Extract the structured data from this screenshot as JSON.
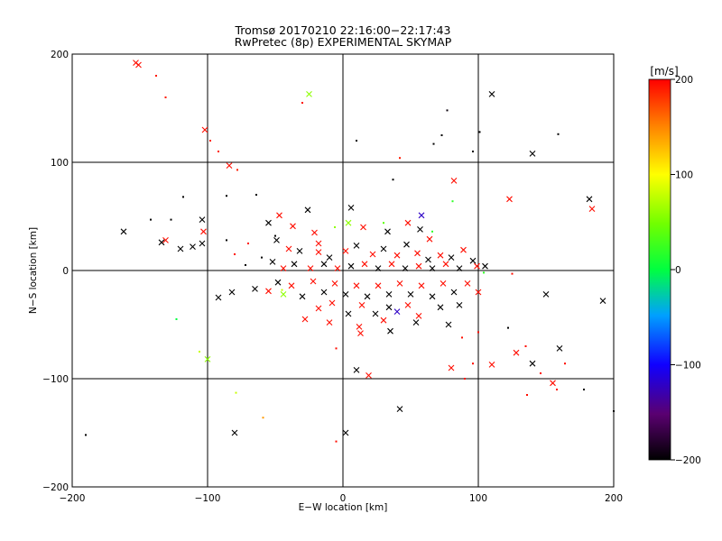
{
  "chart_data": {
    "type": "scatter",
    "title": "Tromsø 20170210 22:16:00−22:17:43",
    "subtitle": "RwPretec (8p) EXPERIMENTAL SKYMAP",
    "xlabel": "E−W location [km]",
    "ylabel": "N−S location [km]",
    "xlim": [
      -200,
      200
    ],
    "ylim": [
      -200,
      200
    ],
    "xticks": [
      -200,
      -100,
      0,
      100,
      200
    ],
    "yticks": [
      -200,
      -100,
      0,
      100,
      200
    ],
    "xtick_labels": [
      "−200",
      "−100",
      "0",
      "100",
      "200"
    ],
    "ytick_labels": [
      "−200",
      "−100",
      "0",
      "100",
      "200"
    ],
    "grid": true,
    "grid_lines_x": [
      -100,
      0,
      100
    ],
    "grid_lines_y": [
      -100,
      0,
      100
    ],
    "colorbar": {
      "label": "[m/s]",
      "range": [
        -200,
        200
      ],
      "ticks": [
        200,
        100,
        0,
        -100,
        -200
      ],
      "tick_labels": [
        "200",
        "100",
        "0",
        "−100",
        "−200"
      ],
      "colormap": "black-purple-blue-cyan-green-yellow-orange-red"
    },
    "marker_types": [
      "x",
      "dot"
    ],
    "points": [
      {
        "x": -151,
        "y": 190,
        "v": 195,
        "m": "x"
      },
      {
        "x": -153,
        "y": 192,
        "v": 195,
        "m": "x"
      },
      {
        "x": -138,
        "y": 180,
        "v": 190,
        "m": "dot"
      },
      {
        "x": -131,
        "y": 160,
        "v": 190,
        "m": "dot"
      },
      {
        "x": -25,
        "y": 163,
        "v": 60,
        "m": "x"
      },
      {
        "x": -30,
        "y": 155,
        "v": 195,
        "m": "dot"
      },
      {
        "x": 110,
        "y": 163,
        "v": -200,
        "m": "x"
      },
      {
        "x": 77,
        "y": 148,
        "v": -195,
        "m": "dot"
      },
      {
        "x": -102,
        "y": 130,
        "v": 195,
        "m": "x"
      },
      {
        "x": -98,
        "y": 120,
        "v": 190,
        "m": "dot"
      },
      {
        "x": -92,
        "y": 110,
        "v": 190,
        "m": "dot"
      },
      {
        "x": 10,
        "y": 120,
        "v": -200,
        "m": "dot"
      },
      {
        "x": 73,
        "y": 125,
        "v": -200,
        "m": "dot"
      },
      {
        "x": 67,
        "y": 117,
        "v": -200,
        "m": "dot"
      },
      {
        "x": 101,
        "y": 128,
        "v": -200,
        "m": "dot"
      },
      {
        "x": 96,
        "y": 110,
        "v": -200,
        "m": "dot"
      },
      {
        "x": 140,
        "y": 108,
        "v": -200,
        "m": "x"
      },
      {
        "x": 159,
        "y": 126,
        "v": -200,
        "m": "dot"
      },
      {
        "x": -84,
        "y": 97,
        "v": 195,
        "m": "x"
      },
      {
        "x": -78,
        "y": 93,
        "v": 190,
        "m": "dot"
      },
      {
        "x": 82,
        "y": 83,
        "v": 195,
        "m": "x"
      },
      {
        "x": 37,
        "y": 84,
        "v": -200,
        "m": "dot"
      },
      {
        "x": 42,
        "y": 104,
        "v": 190,
        "m": "dot"
      },
      {
        "x": -118,
        "y": 68,
        "v": -200,
        "m": "dot"
      },
      {
        "x": -86,
        "y": 69,
        "v": -200,
        "m": "dot"
      },
      {
        "x": -64,
        "y": 70,
        "v": -200,
        "m": "dot"
      },
      {
        "x": 182,
        "y": 66,
        "v": -200,
        "m": "x"
      },
      {
        "x": 184,
        "y": 57,
        "v": 195,
        "m": "x"
      },
      {
        "x": 123,
        "y": 66,
        "v": 195,
        "m": "x"
      },
      {
        "x": 81,
        "y": 64,
        "v": 20,
        "m": "dot"
      },
      {
        "x": -162,
        "y": 36,
        "v": -200,
        "m": "x"
      },
      {
        "x": -142,
        "y": 47,
        "v": -200,
        "m": "dot"
      },
      {
        "x": -127,
        "y": 47,
        "v": -200,
        "m": "dot"
      },
      {
        "x": -104,
        "y": 47,
        "v": -200,
        "m": "x"
      },
      {
        "x": -131,
        "y": 28,
        "v": 195,
        "m": "x"
      },
      {
        "x": -134,
        "y": 26,
        "v": -200,
        "m": "x"
      },
      {
        "x": -120,
        "y": 20,
        "v": -200,
        "m": "x"
      },
      {
        "x": -111,
        "y": 22,
        "v": -200,
        "m": "x"
      },
      {
        "x": -104,
        "y": 25,
        "v": -200,
        "m": "x"
      },
      {
        "x": -103,
        "y": 36,
        "v": 195,
        "m": "x"
      },
      {
        "x": -86,
        "y": 28,
        "v": -200,
        "m": "dot"
      },
      {
        "x": -26,
        "y": 56,
        "v": -200,
        "m": "x"
      },
      {
        "x": 6,
        "y": 58,
        "v": -200,
        "m": "x"
      },
      {
        "x": 4,
        "y": 44,
        "v": 60,
        "m": "x"
      },
      {
        "x": 58,
        "y": 51,
        "v": -120,
        "m": "x"
      },
      {
        "x": -55,
        "y": 44,
        "v": -200,
        "m": "x"
      },
      {
        "x": -47,
        "y": 51,
        "v": 195,
        "m": "x"
      },
      {
        "x": -37,
        "y": 41,
        "v": 195,
        "m": "x"
      },
      {
        "x": -21,
        "y": 35,
        "v": 195,
        "m": "x"
      },
      {
        "x": -18,
        "y": 25,
        "v": 195,
        "m": "x"
      },
      {
        "x": 15,
        "y": 40,
        "v": 195,
        "m": "x"
      },
      {
        "x": 33,
        "y": 36,
        "v": -200,
        "m": "x"
      },
      {
        "x": 48,
        "y": 44,
        "v": 195,
        "m": "x"
      },
      {
        "x": 57,
        "y": 38,
        "v": -200,
        "m": "x"
      },
      {
        "x": 64,
        "y": 29,
        "v": 195,
        "m": "x"
      },
      {
        "x": -49,
        "y": 28,
        "v": -200,
        "m": "x"
      },
      {
        "x": -40,
        "y": 20,
        "v": 195,
        "m": "x"
      },
      {
        "x": -32,
        "y": 18,
        "v": -200,
        "m": "x"
      },
      {
        "x": -18,
        "y": 17,
        "v": 195,
        "m": "x"
      },
      {
        "x": -10,
        "y": 12,
        "v": -200,
        "m": "x"
      },
      {
        "x": 2,
        "y": 18,
        "v": 195,
        "m": "x"
      },
      {
        "x": 10,
        "y": 23,
        "v": -200,
        "m": "x"
      },
      {
        "x": 22,
        "y": 15,
        "v": 195,
        "m": "x"
      },
      {
        "x": 30,
        "y": 20,
        "v": -200,
        "m": "x"
      },
      {
        "x": 40,
        "y": 14,
        "v": 195,
        "m": "x"
      },
      {
        "x": 47,
        "y": 24,
        "v": -200,
        "m": "x"
      },
      {
        "x": 55,
        "y": 16,
        "v": 195,
        "m": "x"
      },
      {
        "x": 63,
        "y": 10,
        "v": -200,
        "m": "x"
      },
      {
        "x": 72,
        "y": 14,
        "v": 195,
        "m": "x"
      },
      {
        "x": 80,
        "y": 12,
        "v": -200,
        "m": "x"
      },
      {
        "x": 89,
        "y": 19,
        "v": 195,
        "m": "x"
      },
      {
        "x": 96,
        "y": 9,
        "v": -200,
        "m": "x"
      },
      {
        "x": 99,
        "y": 4,
        "v": 195,
        "m": "x"
      },
      {
        "x": 105,
        "y": 4,
        "v": -200,
        "m": "x"
      },
      {
        "x": -52,
        "y": 8,
        "v": -200,
        "m": "x"
      },
      {
        "x": -44,
        "y": 2,
        "v": 195,
        "m": "x"
      },
      {
        "x": -36,
        "y": 6,
        "v": -200,
        "m": "x"
      },
      {
        "x": -24,
        "y": 2,
        "v": 195,
        "m": "x"
      },
      {
        "x": -14,
        "y": 6,
        "v": -200,
        "m": "x"
      },
      {
        "x": -4,
        "y": 2,
        "v": 195,
        "m": "x"
      },
      {
        "x": 6,
        "y": 4,
        "v": -200,
        "m": "x"
      },
      {
        "x": 16,
        "y": 6,
        "v": 195,
        "m": "x"
      },
      {
        "x": 26,
        "y": 2,
        "v": -200,
        "m": "x"
      },
      {
        "x": 36,
        "y": 6,
        "v": 195,
        "m": "x"
      },
      {
        "x": 46,
        "y": 2,
        "v": -200,
        "m": "x"
      },
      {
        "x": 56,
        "y": 4,
        "v": 195,
        "m": "x"
      },
      {
        "x": 66,
        "y": 2,
        "v": -200,
        "m": "x"
      },
      {
        "x": 76,
        "y": 6,
        "v": 195,
        "m": "x"
      },
      {
        "x": 86,
        "y": 2,
        "v": -200,
        "m": "x"
      },
      {
        "x": -92,
        "y": -25,
        "v": -200,
        "m": "x"
      },
      {
        "x": -82,
        "y": -20,
        "v": -200,
        "m": "x"
      },
      {
        "x": -65,
        "y": -17,
        "v": -200,
        "m": "x"
      },
      {
        "x": -55,
        "y": -19,
        "v": 195,
        "m": "x"
      },
      {
        "x": -48,
        "y": -11,
        "v": -200,
        "m": "x"
      },
      {
        "x": -44,
        "y": -22,
        "v": 60,
        "m": "x"
      },
      {
        "x": -38,
        "y": -14,
        "v": 195,
        "m": "x"
      },
      {
        "x": -30,
        "y": -24,
        "v": -200,
        "m": "x"
      },
      {
        "x": -22,
        "y": -10,
        "v": 195,
        "m": "x"
      },
      {
        "x": -14,
        "y": -20,
        "v": -200,
        "m": "x"
      },
      {
        "x": -6,
        "y": -12,
        "v": 195,
        "m": "x"
      },
      {
        "x": 2,
        "y": -22,
        "v": -200,
        "m": "x"
      },
      {
        "x": 10,
        "y": -14,
        "v": 195,
        "m": "x"
      },
      {
        "x": 18,
        "y": -24,
        "v": -200,
        "m": "x"
      },
      {
        "x": 26,
        "y": -14,
        "v": 195,
        "m": "x"
      },
      {
        "x": 34,
        "y": -22,
        "v": -200,
        "m": "x"
      },
      {
        "x": 42,
        "y": -12,
        "v": 195,
        "m": "x"
      },
      {
        "x": 50,
        "y": -22,
        "v": -200,
        "m": "x"
      },
      {
        "x": 58,
        "y": -14,
        "v": 195,
        "m": "x"
      },
      {
        "x": 66,
        "y": -24,
        "v": -200,
        "m": "x"
      },
      {
        "x": 74,
        "y": -12,
        "v": 195,
        "m": "x"
      },
      {
        "x": 82,
        "y": -20,
        "v": -200,
        "m": "x"
      },
      {
        "x": 92,
        "y": -12,
        "v": 195,
        "m": "x"
      },
      {
        "x": 100,
        "y": -20,
        "v": 195,
        "m": "x"
      },
      {
        "x": 150,
        "y": -22,
        "v": -200,
        "m": "x"
      },
      {
        "x": 192,
        "y": -28,
        "v": -200,
        "m": "x"
      },
      {
        "x": -18,
        "y": -35,
        "v": 195,
        "m": "x"
      },
      {
        "x": -8,
        "y": -30,
        "v": 195,
        "m": "x"
      },
      {
        "x": 4,
        "y": -40,
        "v": -200,
        "m": "x"
      },
      {
        "x": 14,
        "y": -32,
        "v": 195,
        "m": "x"
      },
      {
        "x": 24,
        "y": -40,
        "v": -200,
        "m": "x"
      },
      {
        "x": 34,
        "y": -34,
        "v": -200,
        "m": "x"
      },
      {
        "x": 40,
        "y": -38,
        "v": -120,
        "m": "x"
      },
      {
        "x": 48,
        "y": -32,
        "v": 195,
        "m": "x"
      },
      {
        "x": 56,
        "y": -42,
        "v": 195,
        "m": "x"
      },
      {
        "x": 72,
        "y": -34,
        "v": -200,
        "m": "x"
      },
      {
        "x": 86,
        "y": -32,
        "v": -200,
        "m": "x"
      },
      {
        "x": -28,
        "y": -45,
        "v": 195,
        "m": "x"
      },
      {
        "x": -10,
        "y": -48,
        "v": 195,
        "m": "x"
      },
      {
        "x": 12,
        "y": -52,
        "v": 195,
        "m": "x"
      },
      {
        "x": 30,
        "y": -46,
        "v": 195,
        "m": "x"
      },
      {
        "x": 54,
        "y": -48,
        "v": -200,
        "m": "x"
      },
      {
        "x": 78,
        "y": -50,
        "v": -200,
        "m": "x"
      },
      {
        "x": 13,
        "y": -58,
        "v": 195,
        "m": "x"
      },
      {
        "x": 35,
        "y": -56,
        "v": -200,
        "m": "x"
      },
      {
        "x": 80,
        "y": -90,
        "v": 195,
        "m": "x"
      },
      {
        "x": 110,
        "y": -87,
        "v": 195,
        "m": "x"
      },
      {
        "x": 128,
        "y": -76,
        "v": 195,
        "m": "x"
      },
      {
        "x": 140,
        "y": -86,
        "v": -200,
        "m": "x"
      },
      {
        "x": 160,
        "y": -72,
        "v": -200,
        "m": "x"
      },
      {
        "x": 155,
        "y": -104,
        "v": 195,
        "m": "x"
      },
      {
        "x": 10,
        "y": -92,
        "v": -200,
        "m": "x"
      },
      {
        "x": 19,
        "y": -97,
        "v": 195,
        "m": "x"
      },
      {
        "x": -100,
        "y": -82,
        "v": 60,
        "m": "x"
      },
      {
        "x": 42,
        "y": -128,
        "v": -200,
        "m": "x"
      },
      {
        "x": -80,
        "y": -150,
        "v": -200,
        "m": "x"
      },
      {
        "x": 2,
        "y": -150,
        "v": -200,
        "m": "x"
      },
      {
        "x": -190,
        "y": -152,
        "v": -200,
        "m": "dot"
      },
      {
        "x": -106,
        "y": -75,
        "v": 80,
        "m": "dot"
      },
      {
        "x": -123,
        "y": -45,
        "v": 0,
        "m": "dot"
      },
      {
        "x": -79,
        "y": -113,
        "v": 80,
        "m": "dot"
      },
      {
        "x": -59,
        "y": -136,
        "v": 140,
        "m": "dot"
      },
      {
        "x": -5,
        "y": -158,
        "v": 195,
        "m": "dot"
      },
      {
        "x": -5,
        "y": -72,
        "v": 195,
        "m": "dot"
      },
      {
        "x": 135,
        "y": -70,
        "v": 195,
        "m": "dot"
      },
      {
        "x": 122,
        "y": -53,
        "v": -200,
        "m": "dot"
      },
      {
        "x": 146,
        "y": -95,
        "v": 195,
        "m": "dot"
      },
      {
        "x": 164,
        "y": -86,
        "v": 195,
        "m": "dot"
      },
      {
        "x": 136,
        "y": -115,
        "v": 195,
        "m": "dot"
      },
      {
        "x": 158,
        "y": -110,
        "v": 195,
        "m": "dot"
      },
      {
        "x": 178,
        "y": -110,
        "v": -200,
        "m": "dot"
      },
      {
        "x": 200,
        "y": -130,
        "v": -200,
        "m": "dot"
      },
      {
        "x": 96,
        "y": -86,
        "v": 195,
        "m": "dot"
      },
      {
        "x": 90,
        "y": -100,
        "v": 195,
        "m": "dot"
      },
      {
        "x": 125,
        "y": -3,
        "v": 195,
        "m": "dot"
      },
      {
        "x": 100,
        "y": -57,
        "v": 195,
        "m": "dot"
      },
      {
        "x": 88,
        "y": -62,
        "v": 195,
        "m": "dot"
      },
      {
        "x": 104,
        "y": -2,
        "v": 20,
        "m": "dot"
      },
      {
        "x": 66,
        "y": 36,
        "v": 20,
        "m": "dot"
      },
      {
        "x": 30,
        "y": 44,
        "v": 40,
        "m": "dot"
      },
      {
        "x": -6,
        "y": 40,
        "v": 60,
        "m": "dot"
      },
      {
        "x": -45,
        "y": -18,
        "v": 80,
        "m": "dot"
      },
      {
        "x": -50,
        "y": 32,
        "v": -200,
        "m": "dot"
      },
      {
        "x": -70,
        "y": 25,
        "v": 195,
        "m": "dot"
      },
      {
        "x": -80,
        "y": 15,
        "v": 195,
        "m": "dot"
      },
      {
        "x": -72,
        "y": 5,
        "v": -200,
        "m": "dot"
      },
      {
        "x": -60,
        "y": 12,
        "v": -200,
        "m": "dot"
      }
    ]
  }
}
